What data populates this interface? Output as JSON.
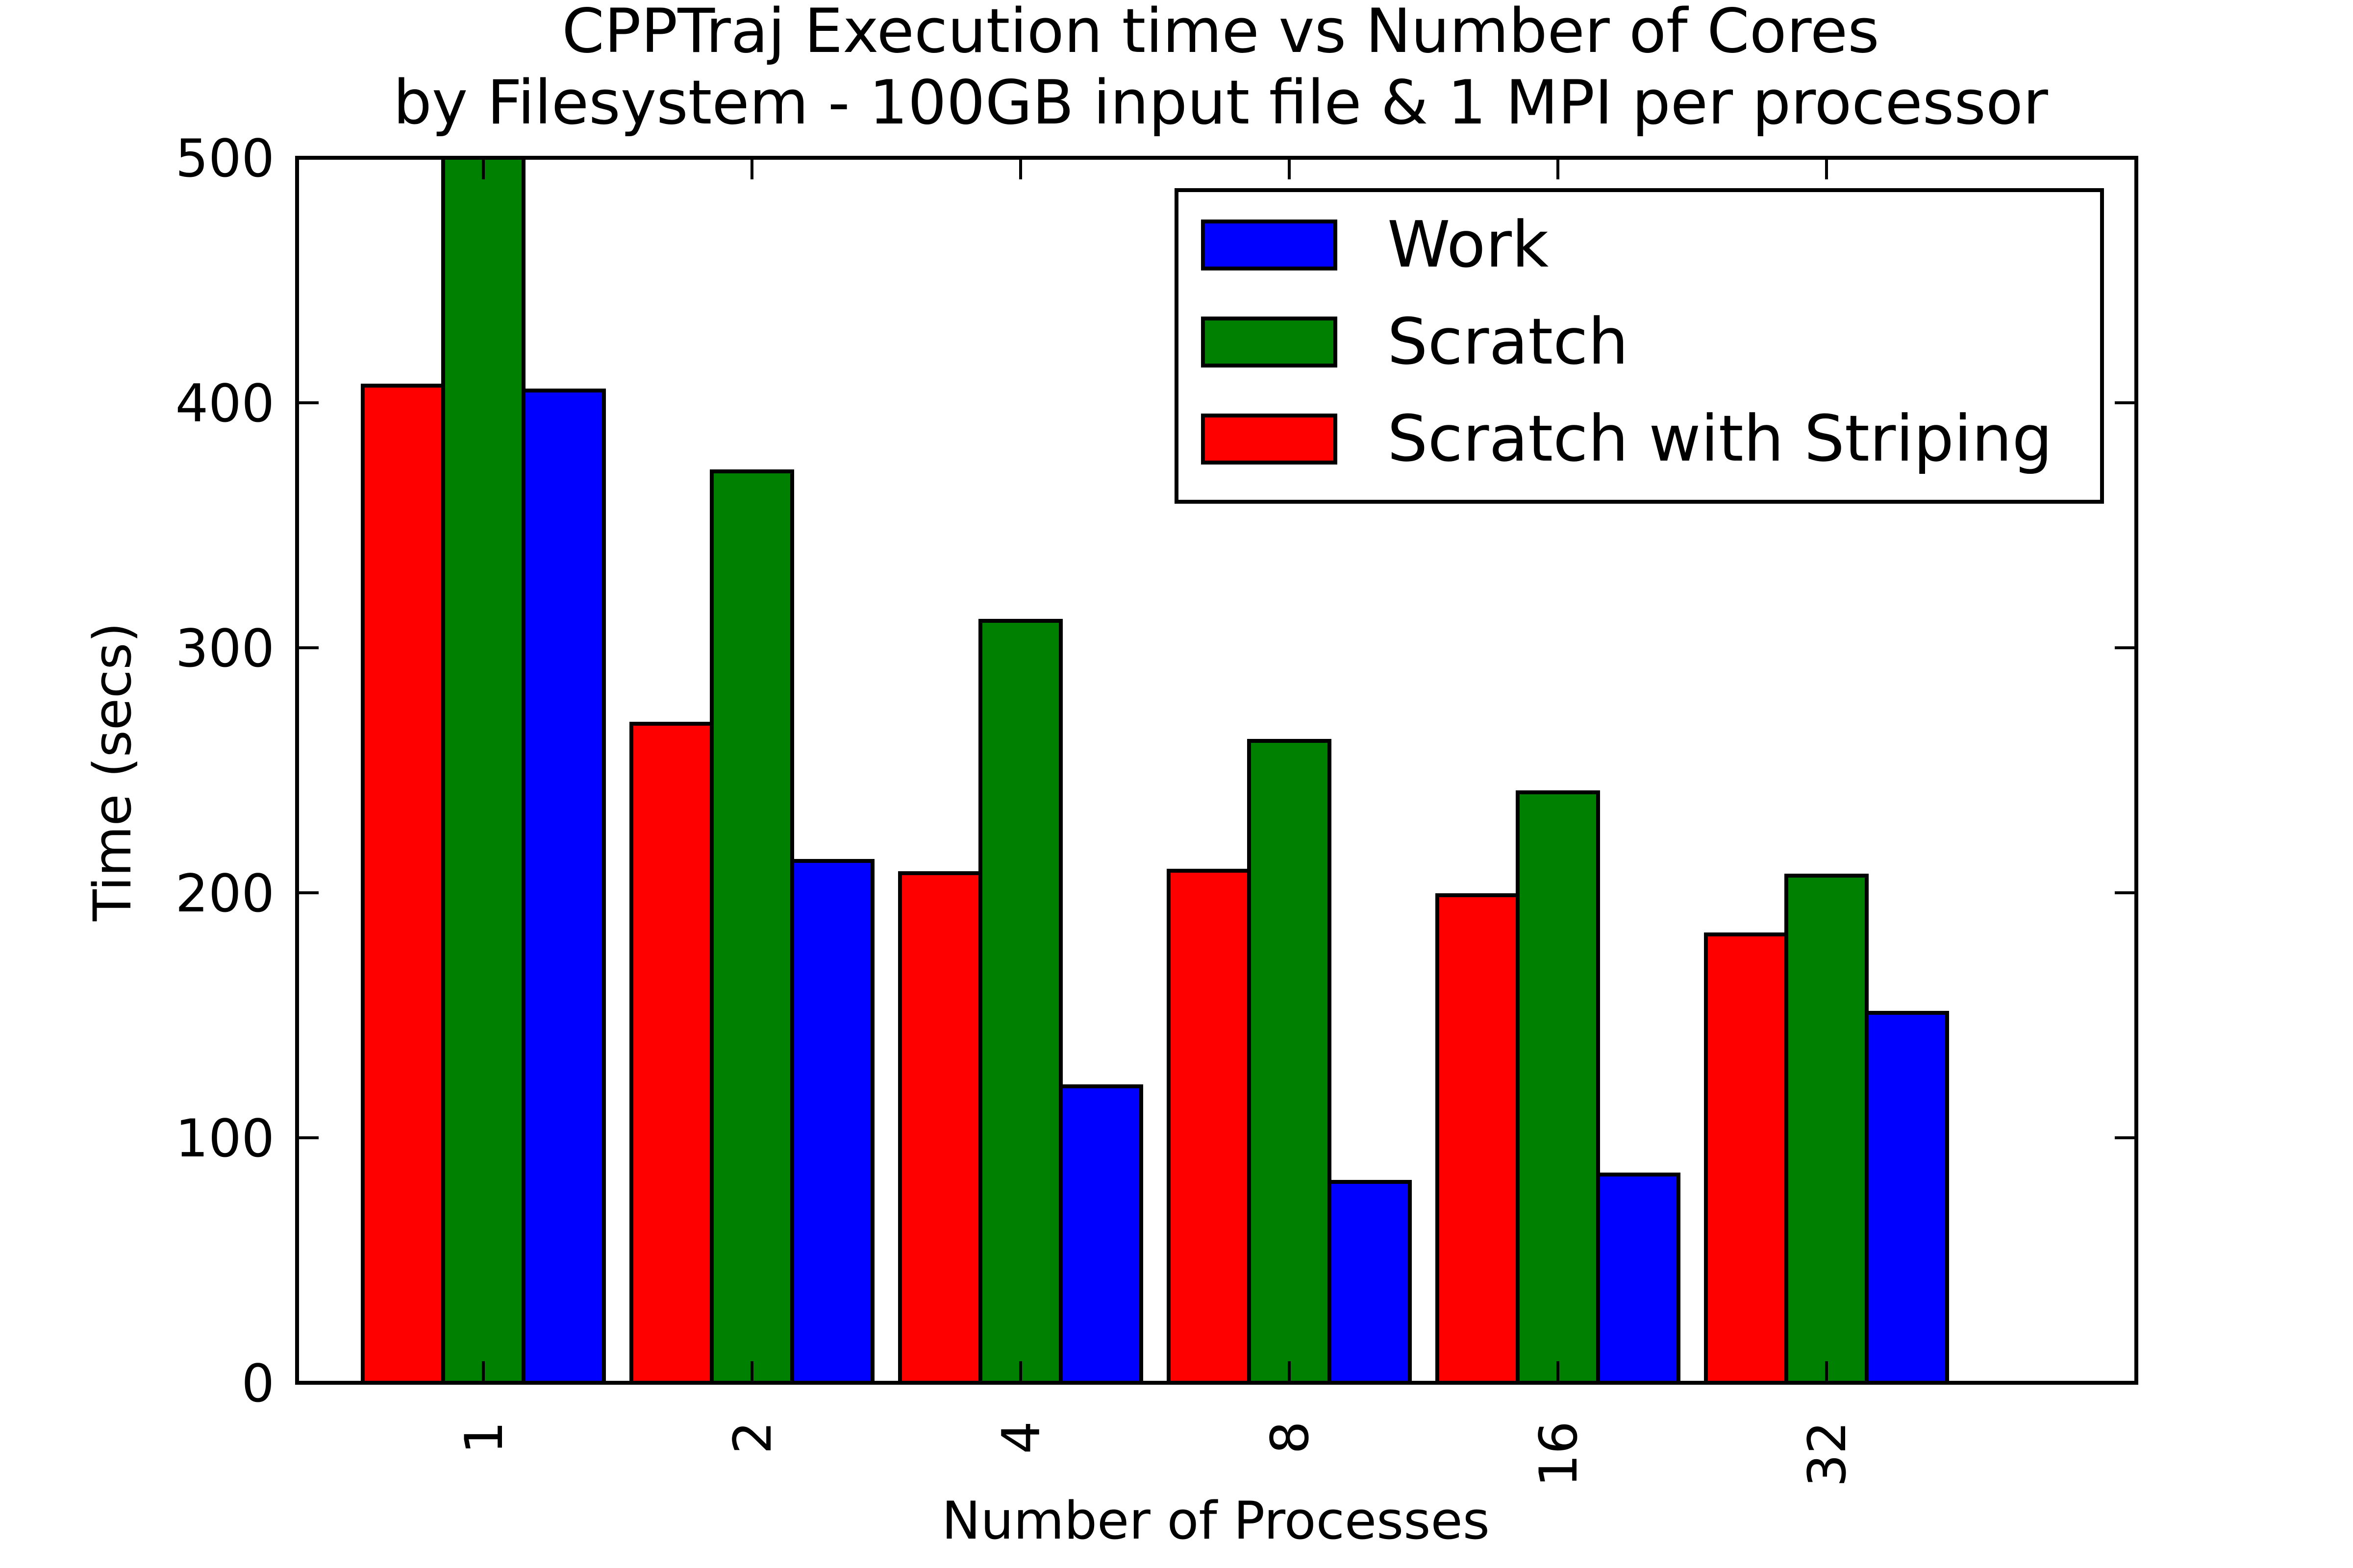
{
  "chart_data": {
    "type": "bar",
    "title": "CPPTraj Execution time vs Number of Cores",
    "subtitle": "by Filesystem - 100GB input file & 1 MPI per processor",
    "xlabel": "Number of Processes",
    "ylabel": "Time (secs)",
    "categories": [
      "1",
      "2",
      "4",
      "8",
      "16",
      "32"
    ],
    "ylim": [
      0,
      500
    ],
    "yticks": [
      "0",
      "100",
      "200",
      "300",
      "400",
      "500"
    ],
    "grid": false,
    "legend_position": "top-right",
    "series": [
      {
        "name": "Scratch with Striping",
        "color": "#ff0000",
        "values": [
          407,
          269,
          208,
          209,
          199,
          183
        ]
      },
      {
        "name": "Scratch",
        "color": "#008000",
        "values": [
          500,
          372,
          311,
          262,
          241,
          207
        ]
      },
      {
        "name": "Work",
        "color": "#0000ff",
        "values": [
          405,
          213,
          121,
          82,
          85,
          151
        ]
      }
    ],
    "legend": [
      {
        "name": "Work",
        "color": "#0000ff"
      },
      {
        "name": "Scratch",
        "color": "#008000"
      },
      {
        "name": "Scratch with Striping",
        "color": "#ff0000"
      }
    ]
  }
}
